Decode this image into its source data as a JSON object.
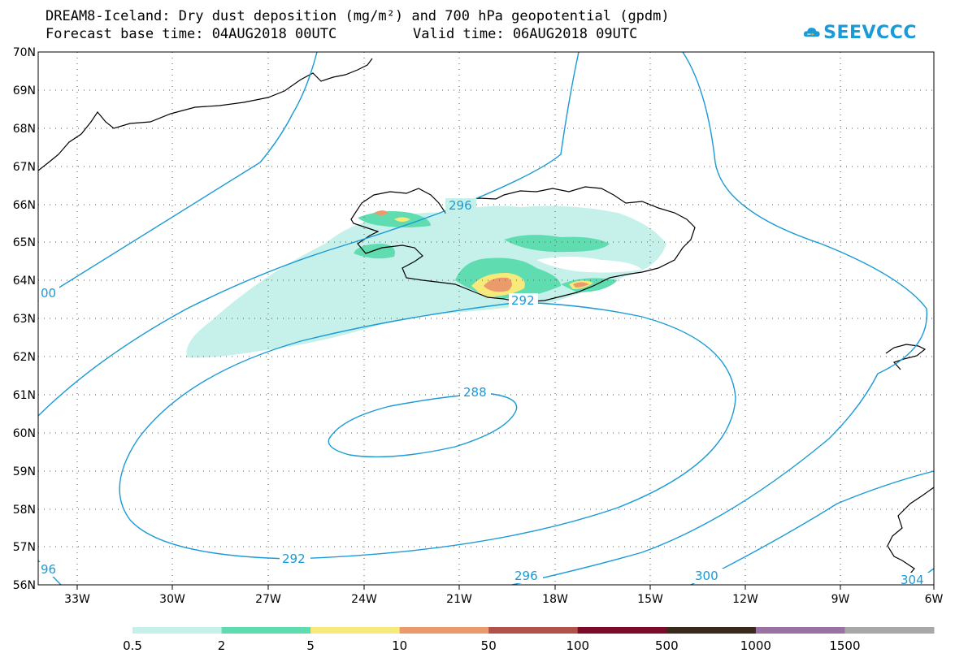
{
  "header": {
    "title": "DREAM8-Iceland: Dry dust deposition (mg/m²) and 700 hPa geopotential (gpdm)",
    "base_time": "Forecast base time: 04AUG2018 00UTC",
    "valid_time": "Valid time: 06AUG2018 09UTC"
  },
  "logo": {
    "text": "SEEVCCC",
    "icon": "cloud-logo-icon",
    "color": "#1a9ad6"
  },
  "map": {
    "lat_labels": [
      "70N",
      "69N",
      "68N",
      "67N",
      "66N",
      "65N",
      "64N",
      "63N",
      "62N",
      "61N",
      "60N",
      "59N",
      "58N",
      "57N",
      "56N"
    ],
    "lon_labels": [
      "33W",
      "30W",
      "27W",
      "24W",
      "21W",
      "18W",
      "15W",
      "12W",
      "9W",
      "6W"
    ],
    "contour_color": "#1a9ad6",
    "contour_labels": [
      "296",
      "292",
      "288",
      "292",
      "296",
      "300",
      "304",
      "00",
      "96"
    ]
  },
  "colorbar": {
    "colors": [
      "#c6f1ea",
      "#5fddb1",
      "#f5ea7a",
      "#eb9b6b",
      "#b0524a",
      "#7c0a2a",
      "#3a2a1b",
      "#9a72a2",
      "#a8a8a8"
    ],
    "labels": [
      "0.5",
      "2",
      "5",
      "10",
      "50",
      "100",
      "500",
      "1000",
      "1500"
    ]
  }
}
